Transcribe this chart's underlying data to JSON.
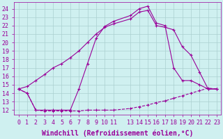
{
  "xlabel": "Windchill (Refroidissement éolien,°C)",
  "ylabel": "",
  "bg_color": "#cff0f0",
  "line_color": "#990099",
  "grid_color": "#aad0d0",
  "xlim_min": -0.5,
  "xlim_max": 23.5,
  "ylim_min": 11.5,
  "ylim_max": 24.8,
  "xticks": [
    0,
    1,
    2,
    3,
    4,
    5,
    6,
    7,
    8,
    9,
    10,
    11,
    13,
    14,
    15,
    16,
    17,
    18,
    19,
    20,
    21,
    22,
    23
  ],
  "xtick_labels": [
    "0",
    "1",
    "2",
    "3",
    "4",
    "5",
    "6",
    "7",
    "8",
    "9",
    "10",
    "11",
    "13",
    "14",
    "15",
    "16",
    "17",
    "18",
    "19",
    "20",
    "21",
    "22",
    "23"
  ],
  "yticks": [
    12,
    13,
    14,
    15,
    16,
    17,
    18,
    19,
    20,
    21,
    22,
    23,
    24
  ],
  "line1_x": [
    0,
    1,
    2,
    3,
    4,
    5,
    6,
    7,
    8,
    9,
    10,
    11,
    13,
    14,
    15,
    16,
    17,
    18,
    19,
    20,
    21,
    22,
    23
  ],
  "line1_y": [
    14.5,
    14.0,
    12.0,
    11.9,
    11.9,
    11.9,
    11.9,
    11.9,
    12.0,
    12.0,
    12.0,
    12.0,
    12.2,
    12.4,
    12.6,
    12.9,
    13.1,
    13.4,
    13.7,
    14.0,
    14.3,
    14.6,
    14.5
  ],
  "line1_style": "--",
  "line2_x": [
    0,
    1,
    2,
    3,
    4,
    5,
    6,
    7,
    8,
    9,
    10,
    11,
    13,
    14,
    15,
    16,
    17,
    18,
    19,
    20,
    21,
    22,
    23
  ],
  "line2_y": [
    14.5,
    14.8,
    15.5,
    16.2,
    17.0,
    17.5,
    18.2,
    19.0,
    20.0,
    21.0,
    21.8,
    22.2,
    22.8,
    23.6,
    23.8,
    22.0,
    21.8,
    21.5,
    19.5,
    18.5,
    16.5,
    14.5,
    14.5
  ],
  "line2_style": "-",
  "line3_x": [
    0,
    1,
    2,
    3,
    4,
    5,
    6,
    7,
    8,
    9,
    10,
    11,
    13,
    14,
    15,
    16,
    17,
    18,
    19,
    20,
    21,
    22,
    23
  ],
  "line3_y": [
    14.5,
    14.0,
    12.0,
    12.0,
    12.0,
    12.0,
    12.0,
    14.5,
    17.5,
    20.5,
    21.9,
    22.5,
    23.2,
    24.0,
    24.3,
    22.3,
    22.0,
    17.0,
    15.5,
    15.5,
    15.0,
    14.5,
    14.5
  ],
  "line3_style": "-",
  "font_size": 7,
  "tick_font_size": 6,
  "marker": "+",
  "marker_size": 3,
  "line_width": 0.8
}
